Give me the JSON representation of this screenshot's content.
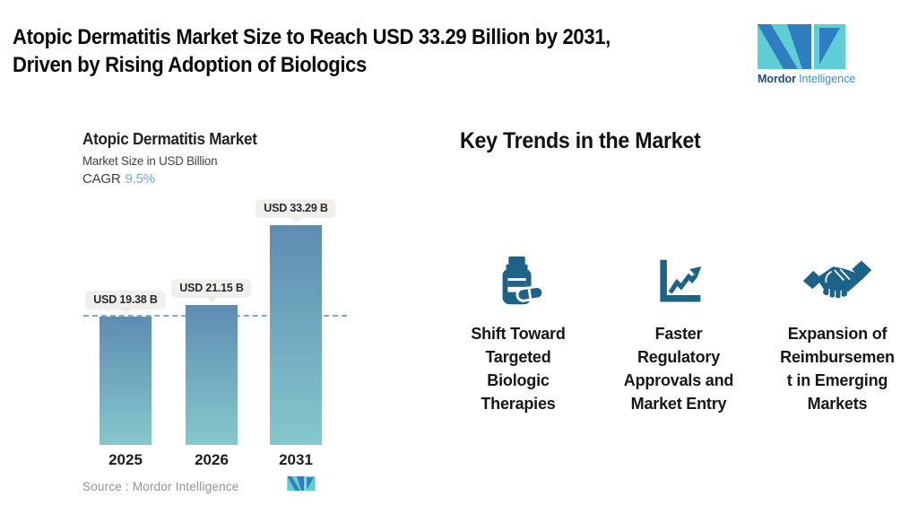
{
  "header": {
    "title": "Atopic Dermatitis Market Size to Reach USD 33.29 Billion by 2031,\nDriven by Rising Adoption of Biologics",
    "logo": {
      "brand_bold": "Mordor",
      "brand_light": "Intelligence"
    }
  },
  "colors": {
    "logo_teal": "#5ecdd4",
    "logo_blue": "#2e7ec0",
    "brand_navy": "#1b4e79",
    "brand_light_blue": "#3e8ec9",
    "icon_blue": "#1d6287",
    "bar_top": "#5e8cb2",
    "bar_bottom": "#85c8cc",
    "dashed_line": "#84a9c6",
    "cagr_accent": "#74abd6",
    "callout_bg": "#f1efec"
  },
  "chart_data": {
    "type": "bar",
    "title": "Atopic Dermatitis Market",
    "subtitle": "Market Size in USD Billion",
    "cagr_label": "CAGR",
    "cagr_value": "9.5%",
    "categories": [
      "2025",
      "2026",
      "2031"
    ],
    "values": [
      19.38,
      21.15,
      33.29
    ],
    "bar_labels": [
      "USD 19.38 B",
      "USD 21.15 B",
      "USD 33.29 B"
    ],
    "ylim": [
      0,
      33.29
    ],
    "grid": false,
    "reference_line_value": 19.38,
    "legend": "none",
    "source": "Source :  Mordor Intelligence"
  },
  "trends": {
    "heading": "Key Trends in the Market",
    "items": [
      {
        "icon": "pill-bottle-icon",
        "label": "Shift Toward\nTargeted\nBiologic\nTherapies"
      },
      {
        "icon": "growth-chart-icon",
        "label": "Faster\nRegulatory\nApprovals and\nMarket Entry"
      },
      {
        "icon": "handshake-icon",
        "label": "Expansion of\nReimbursemen\nt in Emerging\nMarkets"
      }
    ]
  }
}
